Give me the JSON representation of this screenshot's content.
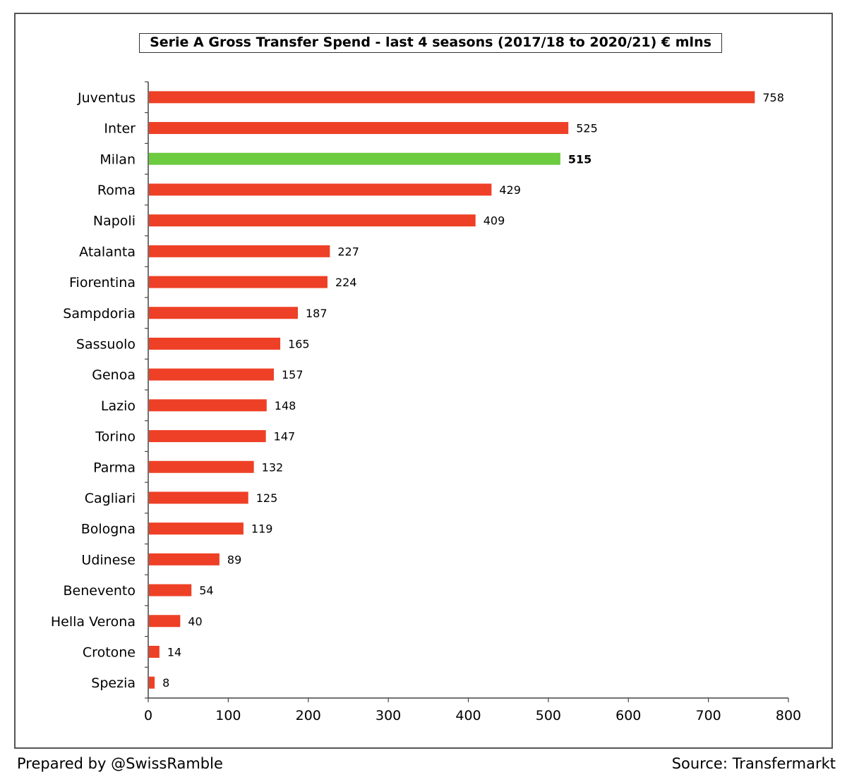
{
  "chart_data": {
    "type": "bar",
    "orientation": "horizontal",
    "title": "Serie A Gross Transfer Spend - last 4 seasons (2017/18 to 2020/21) € mlns",
    "xlabel": "",
    "ylabel": "",
    "categories": [
      "Juventus",
      "Inter",
      "Milan",
      "Roma",
      "Napoli",
      "Atalanta",
      "Fiorentina",
      "Sampdoria",
      "Sassuolo",
      "Genoa",
      "Lazio",
      "Torino",
      "Parma",
      "Cagliari",
      "Bologna",
      "Udinese",
      "Benevento",
      "Hella Verona",
      "Crotone",
      "Spezia"
    ],
    "values": [
      758,
      525,
      515,
      429,
      409,
      227,
      224,
      187,
      165,
      157,
      148,
      147,
      132,
      125,
      119,
      89,
      54,
      40,
      14,
      8
    ],
    "xlim": [
      0,
      800
    ],
    "xticks": [
      0,
      100,
      200,
      300,
      400,
      500,
      600,
      700,
      800
    ],
    "highlight": "Milan",
    "colors": {
      "bar": "#ee4026",
      "highlight": "#6ccb3e"
    },
    "grid": false,
    "legend": "none"
  },
  "footer": {
    "left": "Prepared by @SwissRamble",
    "right": "Source: Transfermarkt"
  }
}
